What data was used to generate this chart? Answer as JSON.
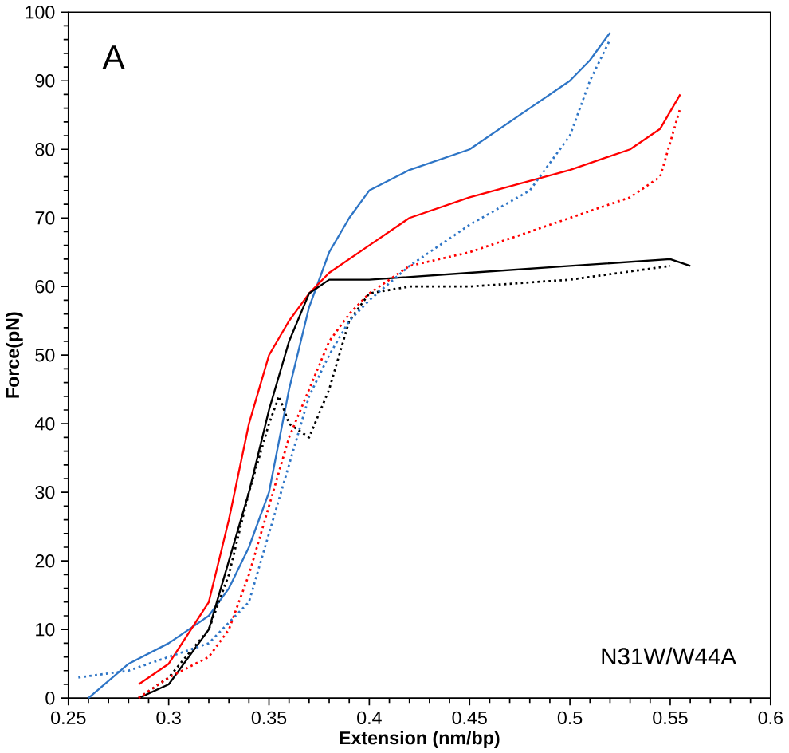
{
  "chart_data": {
    "type": "line",
    "xlabel": "Extension (nm/bp)",
    "ylabel": "Force(pN)",
    "annotations": [
      "A",
      "N31W/W44A"
    ],
    "xlim": [
      0.25,
      0.6
    ],
    "ylim": [
      0,
      100
    ],
    "xticks": [
      0.25,
      0.3,
      0.35,
      0.4,
      0.45,
      0.5,
      0.55,
      0.6
    ],
    "yticks": [
      0,
      10,
      20,
      30,
      40,
      50,
      60,
      70,
      80,
      90,
      100
    ],
    "marker": "none",
    "series": [
      {
        "color": "#2e75c6",
        "line_style": "solid",
        "x": [
          0.26,
          0.28,
          0.3,
          0.32,
          0.33,
          0.34,
          0.35,
          0.36,
          0.37,
          0.38,
          0.39,
          0.4,
          0.42,
          0.45,
          0.48,
          0.5,
          0.51,
          0.52
        ],
        "values": [
          0,
          5,
          8,
          12,
          16,
          22,
          30,
          45,
          57,
          65,
          70,
          74,
          77,
          80,
          86,
          90,
          93,
          97
        ]
      },
      {
        "color": "#ff0000",
        "line_style": "solid",
        "x": [
          0.285,
          0.3,
          0.32,
          0.33,
          0.34,
          0.35,
          0.36,
          0.37,
          0.38,
          0.4,
          0.42,
          0.45,
          0.5,
          0.53,
          0.545,
          0.555
        ],
        "values": [
          2,
          5,
          14,
          26,
          40,
          50,
          55,
          59,
          62,
          66,
          70,
          73,
          77,
          80,
          83,
          88
        ]
      },
      {
        "color": "#000000",
        "line_style": "solid",
        "x": [
          0.285,
          0.3,
          0.32,
          0.33,
          0.34,
          0.35,
          0.36,
          0.37,
          0.38,
          0.4,
          0.45,
          0.5,
          0.55,
          0.56
        ],
        "values": [
          0,
          2,
          10,
          20,
          30,
          42,
          52,
          59,
          61,
          61,
          62,
          63,
          64,
          63
        ]
      },
      {
        "color": "#000000",
        "line_style": "dotted",
        "x": [
          0.285,
          0.3,
          0.32,
          0.33,
          0.34,
          0.35,
          0.355,
          0.36,
          0.37,
          0.38,
          0.39,
          0.4,
          0.42,
          0.45,
          0.5,
          0.55
        ],
        "values": [
          0,
          3,
          10,
          18,
          30,
          40,
          44,
          40,
          38,
          45,
          55,
          59,
          60,
          60,
          61,
          63
        ]
      },
      {
        "color": "#ff0000",
        "line_style": "dotted",
        "x": [
          0.285,
          0.3,
          0.32,
          0.33,
          0.34,
          0.35,
          0.36,
          0.37,
          0.38,
          0.39,
          0.4,
          0.42,
          0.45,
          0.5,
          0.53,
          0.545,
          0.555
        ],
        "values": [
          0,
          3,
          6,
          10,
          18,
          28,
          38,
          45,
          52,
          56,
          59,
          63,
          65,
          70,
          73,
          76,
          86
        ]
      },
      {
        "color": "#2e75c6",
        "line_style": "dotted",
        "x": [
          0.255,
          0.28,
          0.3,
          0.32,
          0.34,
          0.35,
          0.36,
          0.37,
          0.38,
          0.39,
          0.4,
          0.42,
          0.45,
          0.48,
          0.5,
          0.51,
          0.52
        ],
        "values": [
          3,
          4,
          6,
          8,
          14,
          24,
          34,
          44,
          50,
          55,
          58,
          63,
          69,
          74,
          82,
          90,
          96
        ]
      }
    ]
  }
}
